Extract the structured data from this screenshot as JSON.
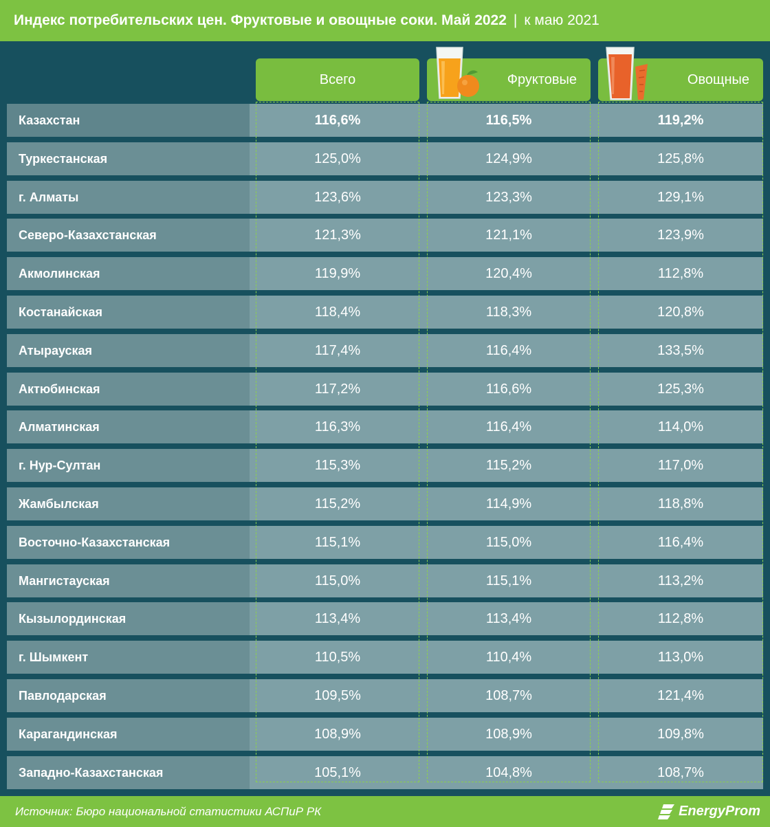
{
  "header": {
    "title": "Индекс потребительских цен. Фруктовые и овощные соки. Май 2022",
    "separator": "|",
    "subtitle": "к маю 2021"
  },
  "chart_data": {
    "type": "table",
    "title": "Индекс потребительских цен. Фруктовые и овощные соки. Май 2022 | к маю 2021",
    "columns": [
      "Всего",
      "Фруктовые",
      "Овощные"
    ],
    "rows": [
      {
        "region": "Казахстан",
        "values": [
          "116,6%",
          "116,5%",
          "119,2%"
        ]
      },
      {
        "region": "Туркестанская",
        "values": [
          "125,0%",
          "124,9%",
          "125,8%"
        ]
      },
      {
        "region": "г. Алматы",
        "values": [
          "123,6%",
          "123,3%",
          "129,1%"
        ]
      },
      {
        "region": "Северо-Казахстанская",
        "values": [
          "121,3%",
          "121,1%",
          "123,9%"
        ]
      },
      {
        "region": "Акмолинская",
        "values": [
          "119,9%",
          "120,4%",
          "112,8%"
        ]
      },
      {
        "region": "Костанайская",
        "values": [
          "118,4%",
          "118,3%",
          "120,8%"
        ]
      },
      {
        "region": "Атырауская",
        "values": [
          "117,4%",
          "116,4%",
          "133,5%"
        ]
      },
      {
        "region": "Актюбинская",
        "values": [
          "117,2%",
          "116,6%",
          "125,3%"
        ]
      },
      {
        "region": "Алматинская",
        "values": [
          "116,3%",
          "116,4%",
          "114,0%"
        ]
      },
      {
        "region": "г. Нур-Султан",
        "values": [
          "115,3%",
          "115,2%",
          "117,0%"
        ]
      },
      {
        "region": "Жамбылская",
        "values": [
          "115,2%",
          "114,9%",
          "118,8%"
        ]
      },
      {
        "region": "Восточно-Казахстанская",
        "values": [
          "115,1%",
          "115,0%",
          "116,4%"
        ]
      },
      {
        "region": "Мангистауская",
        "values": [
          "115,0%",
          "115,1%",
          "113,2%"
        ]
      },
      {
        "region": "Кызылординская",
        "values": [
          "113,4%",
          "113,4%",
          "112,8%"
        ]
      },
      {
        "region": "г. Шымкент",
        "values": [
          "110,5%",
          "110,4%",
          "113,0%"
        ]
      },
      {
        "region": "Павлодарская",
        "values": [
          "109,5%",
          "108,7%",
          "121,4%"
        ]
      },
      {
        "region": "Карагандинская",
        "values": [
          "108,9%",
          "108,9%",
          "109,8%"
        ]
      },
      {
        "region": "Западно-Казахстанская",
        "values": [
          "105,1%",
          "104,8%",
          "108,7%"
        ]
      }
    ]
  },
  "footer": {
    "source": "Источник: Бюро национальной статистики АСПиР РК",
    "brand": "EnergyProm"
  },
  "colors": {
    "green": "#7dc242",
    "background": "#17505e",
    "cell": "#7ea0a6",
    "name_cell": "#6b8f95",
    "juice_orange": "#f7a21b",
    "juice_carrot": "#e8622a"
  },
  "icons": [
    "orange-juice-glass-icon",
    "carrot-juice-glass-icon",
    "energyprom-logo-icon"
  ]
}
